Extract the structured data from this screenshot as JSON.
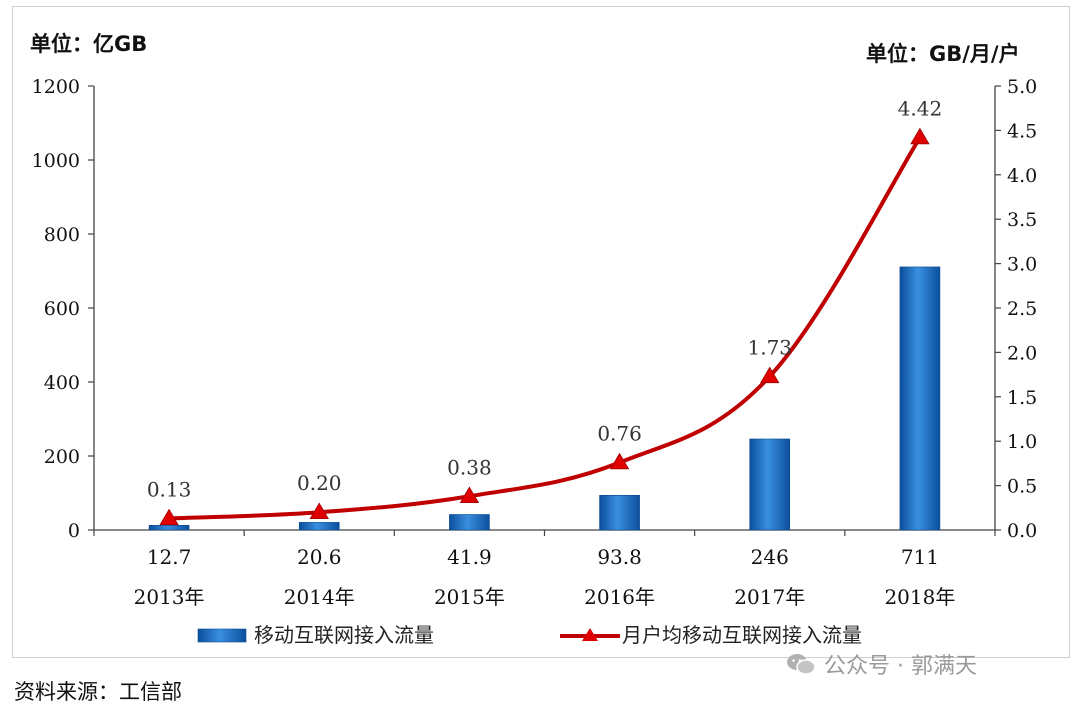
{
  "chart_data": {
    "type": "bar+line",
    "categories": [
      "2013年",
      "2014年",
      "2015年",
      "2016年",
      "2017年",
      "2018年"
    ],
    "series": [
      {
        "name": "移动互联网接入流量",
        "type": "bar",
        "axis": "left",
        "values": [
          12.7,
          20.6,
          41.9,
          93.8,
          246,
          711
        ],
        "labels": [
          "12.7",
          "20.6",
          "41.9",
          "93.8",
          "246",
          "711"
        ],
        "color": "#1f6fc6"
      },
      {
        "name": "月户均移动互联网接入流量",
        "type": "line",
        "axis": "right",
        "values": [
          0.13,
          0.2,
          0.38,
          0.76,
          1.73,
          4.42
        ],
        "labels": [
          "0.13",
          "0.20",
          "0.38",
          "0.76",
          "1.73",
          "4.42"
        ],
        "color": "#c00000",
        "marker_color": "#e00000"
      }
    ],
    "y_left": {
      "unit": "单位：亿GB",
      "ylim": [
        0,
        1200
      ],
      "ticks": [
        "0",
        "200",
        "400",
        "600",
        "800",
        "1000",
        "1200"
      ]
    },
    "y_right": {
      "unit": "单位：GB/月/户",
      "ylim": [
        0,
        5.0
      ],
      "ticks": [
        "0.0",
        "0.5",
        "1.0",
        "1.5",
        "2.0",
        "2.5",
        "3.0",
        "3.5",
        "4.0",
        "4.5",
        "5.0"
      ]
    },
    "grid": false,
    "legend": "bottom"
  },
  "source": "资料来源：工信部",
  "watermark": "公众号 · 郭满天"
}
